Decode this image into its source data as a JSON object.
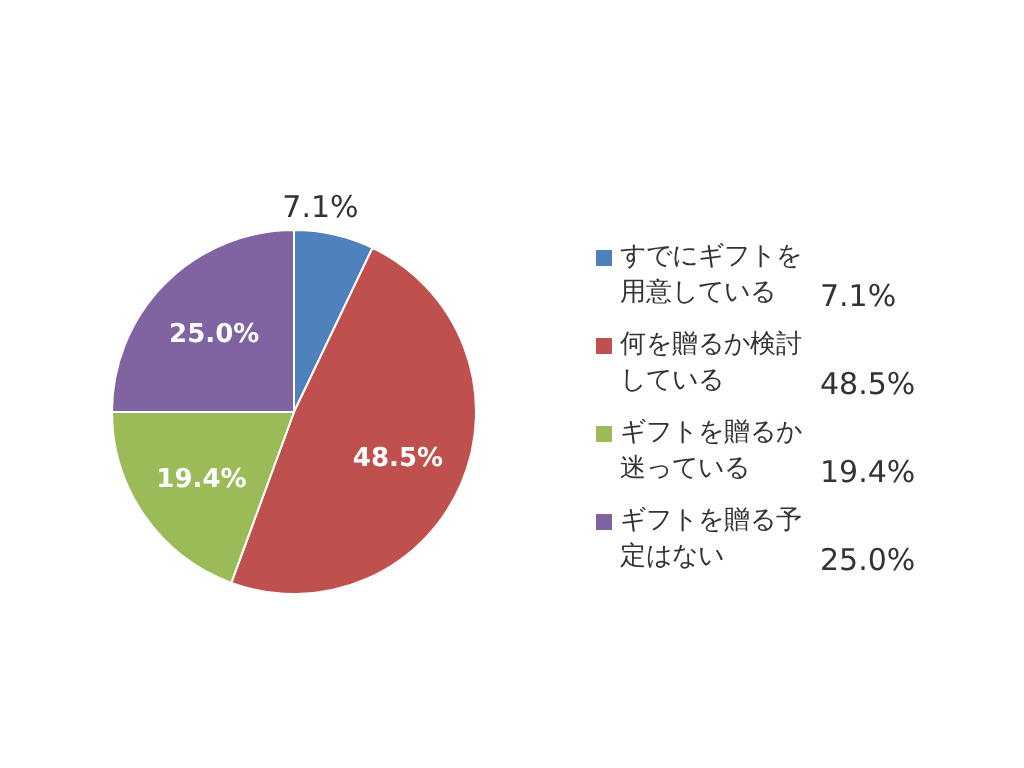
{
  "chart_data": {
    "type": "pie",
    "categories": [
      "すでにギフトを用意している",
      "何を贈るか検討している",
      "ギフトを贈るか迷っている",
      "ギフトを贈る予定はない"
    ],
    "values": [
      7.1,
      48.5,
      19.4,
      25.0
    ],
    "colors": [
      "#4f81bd",
      "#c0504d",
      "#9bbb59",
      "#8064a2"
    ],
    "value_labels": [
      "7.1%",
      "48.5%",
      "19.4%",
      "25.0%"
    ],
    "legend": "right"
  }
}
